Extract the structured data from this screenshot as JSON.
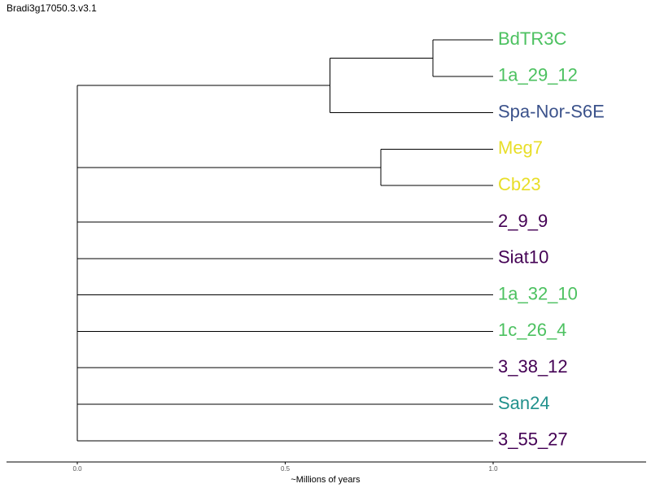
{
  "title": "Bradi3g17050.3.v3.1",
  "colors": {
    "green": "#4cc160",
    "blue": "#3b528b",
    "yellow": "#e8de28",
    "purple": "#440154",
    "teal": "#21918c"
  },
  "tree": {
    "tips": [
      {
        "label": "BdTR3C",
        "color": "green",
        "branch_end": 1.0
      },
      {
        "label": "1a_29_12",
        "color": "green",
        "branch_end": 1.0
      },
      {
        "label": "Spa-Nor-S6E",
        "color": "blue",
        "branch_end": 1.0
      },
      {
        "label": "Meg7",
        "color": "yellow",
        "branch_end": 1.0
      },
      {
        "label": "Cb23",
        "color": "yellow",
        "branch_end": 1.0
      },
      {
        "label": "2_9_9",
        "color": "purple",
        "branch_end": 1.0
      },
      {
        "label": "Siat10",
        "color": "purple",
        "branch_end": 1.0
      },
      {
        "label": "1a_32_10",
        "color": "green",
        "branch_end": 1.0
      },
      {
        "label": "1c_26_4",
        "color": "green",
        "branch_end": 1.0
      },
      {
        "label": "3_38_12",
        "color": "purple",
        "branch_end": 1.0
      },
      {
        "label": "San24",
        "color": "teal",
        "branch_end": 1.0
      },
      {
        "label": "3_55_27",
        "color": "purple",
        "branch_end": 1.0
      }
    ],
    "internal_nodes": [
      {
        "id": "n1",
        "depth": 0.855,
        "children_tips": [
          0,
          1
        ]
      },
      {
        "id": "n2",
        "depth": 0.608,
        "children": [
          "n1"
        ],
        "children_tips": [
          2
        ]
      },
      {
        "id": "n3",
        "depth": 0.73,
        "children_tips": [
          3,
          4
        ]
      },
      {
        "id": "root",
        "depth": 0.0,
        "children": [
          "n2",
          "n3"
        ],
        "children_tips": [
          5,
          6,
          7,
          8,
          9,
          10,
          11
        ]
      }
    ]
  },
  "axis": {
    "ticks": [
      {
        "value": 0.0,
        "label": "0.0"
      },
      {
        "value": 0.5,
        "label": "0.5"
      },
      {
        "value": 1.0,
        "label": "1.0"
      }
    ],
    "title": "~Millions of years"
  }
}
